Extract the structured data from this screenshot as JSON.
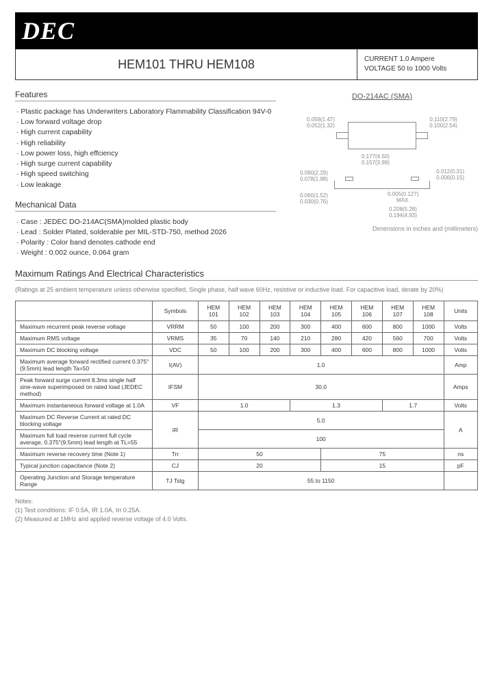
{
  "logo": "DEC",
  "header": {
    "title": "HEM101 THRU HEM108",
    "spec1": "CURRENT 1.0 Ampere",
    "spec2": "VOLTAGE  50 to 1000 Volts"
  },
  "features": {
    "heading": "Features",
    "items": [
      "· Plastic package has Underwriters Laboratory Flammability Classification 94V-0",
      "· Low forward voltage drop",
      "· High current capability",
      "· High reliability",
      "· Low power loss, high effciency",
      "· High surge current capability",
      "· High speed switching",
      "· Low leakage"
    ]
  },
  "mech": {
    "heading": "Mechanical Data",
    "items": [
      "· Case : JEDEC DO-214AC(SMA)molded plastic body",
      "· Lead : Solder Plated, solderable per MIL-STD-750, method 2026",
      "· Polarity : Color band denotes cathode end",
      "· Weight : 0.002 ounce, 0.064 gram"
    ]
  },
  "diagram": {
    "title": "DO-214AC (SMA)",
    "d1": "0.058(1.47)",
    "d1b": "0.052(1.32)",
    "d2": "0.110(2.79)",
    "d2b": "0.100(2.54)",
    "d3": "0.177(4.50)",
    "d3b": "0.157(3.99)",
    "d4": "0.012(0.31)",
    "d4b": "0.006(0.15)",
    "d5": "0.090(2.29)",
    "d5b": "0.078(1.98)",
    "d6": "0.060(1.52)",
    "d6b": "0.030(0.76)",
    "d7": "0.005(0.127)",
    "d7b": "MAX.",
    "d8": "0.208(5.28)",
    "d8b": "0.194(4.93)",
    "note": "Dimensions in inches and (millimeters)"
  },
  "ratings": {
    "heading": "Maximum Ratings And Electrical Characteristics",
    "sub": "(Ratings at 25    ambient temperature unless otherwise specified, Single phase, half wave 60Hz, resistive or inductive load. For capacitive load, derate by 20%)",
    "cols": [
      "Symbols",
      "HEM 101",
      "HEM 102",
      "HEM 103",
      "HEM 104",
      "HEM 105",
      "HEM 106",
      "HEM 107",
      "HEM 108",
      "Units"
    ],
    "rows": [
      {
        "label": "Maximum recurrent peak reverse voltage",
        "sym": "VRRM",
        "v": [
          "50",
          "100",
          "200",
          "300",
          "400",
          "600",
          "800",
          "1000"
        ],
        "unit": "Volts"
      },
      {
        "label": "Maximum RMS voltage",
        "sym": "VRMS",
        "v": [
          "35",
          "70",
          "140",
          "210",
          "280",
          "420",
          "560",
          "700"
        ],
        "unit": "Volts"
      },
      {
        "label": "Maximum DC blocking voltage",
        "sym": "VDC",
        "v": [
          "50",
          "100",
          "200",
          "300",
          "400",
          "600",
          "800",
          "1000"
        ],
        "unit": "Volts"
      },
      {
        "label": "Maximum average forward rectified current 0.375\"(9.5mm) lead length Ta=50",
        "sym": "I(AV)",
        "span": "1.0",
        "unit": "Amp"
      },
      {
        "label": "Peak forward surge current 8.3ms single half sine-wave superimposed on rated load (JEDEC method)",
        "sym": "IFSM",
        "span": "30.0",
        "unit": "Amps"
      },
      {
        "label": "Maximum instantaneous forward voltage at 1.0A",
        "sym": "VF",
        "tri": [
          "1.0",
          "1.3",
          "1.7"
        ],
        "unit": "Volts"
      },
      {
        "label": "Maximum DC Reverse Current at rated DC blocking voltage",
        "sym": "IR",
        "span": "5.0",
        "unit": "A",
        "grouped": true
      },
      {
        "label": "Maximum full load reverse current full cycle average, 0.375\"(9.5mm) lead length at TL=55",
        "span": "100",
        "grouped": true
      },
      {
        "label": "Maximum reverse recovery time (Note 1)",
        "sym": "Trr",
        "duo": [
          "50",
          "75"
        ],
        "unit": "ns"
      },
      {
        "label": "Typical junction capacitance (Note 2)",
        "sym": "CJ",
        "duo": [
          "20",
          "15"
        ],
        "unit": "pF"
      },
      {
        "label": "Operating Junction and Storage temperature Range",
        "sym": "TJ Tstg",
        "span": "55 to 1150",
        "unit": ""
      }
    ]
  },
  "notes": {
    "h": "Notes:",
    "n1": "(1) Test conditions: IF  0.5A, IR  1.0A, Irr  0.25A.",
    "n2": "(2) Measured at 1MHz and applied reverse voltage of 4.0 Volts."
  }
}
